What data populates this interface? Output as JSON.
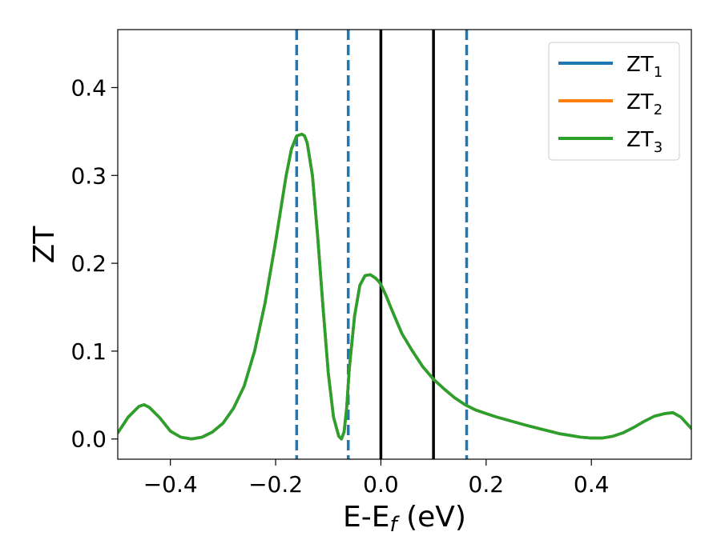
{
  "chart_data": {
    "type": "line",
    "title": "",
    "xlabel": "E-E",
    "xlabel_sub": "f",
    "xlabel_unit": " (eV)",
    "ylabel": "ZT",
    "xlim": [
      -0.5,
      0.59
    ],
    "ylim": [
      -0.023,
      0.466
    ],
    "xticks": [
      -0.4,
      -0.2,
      0.0,
      0.2,
      0.4
    ],
    "xtick_labels": [
      "−0.4",
      "−0.2",
      "0.0",
      "0.2",
      "0.4"
    ],
    "yticks": [
      0.0,
      0.1,
      0.2,
      0.3,
      0.4
    ],
    "ytick_labels": [
      "0.0",
      "0.1",
      "0.2",
      "0.3",
      "0.4"
    ],
    "grid": false,
    "legend_position": "top-right",
    "vlines": [
      {
        "x": -0.16,
        "style": "dashed",
        "color": "#1f77b4"
      },
      {
        "x": -0.062,
        "style": "dashed",
        "color": "#1f77b4"
      },
      {
        "x": 0.0,
        "style": "solid",
        "color": "#000000"
      },
      {
        "x": 0.1,
        "style": "solid",
        "color": "#000000"
      },
      {
        "x": 0.163,
        "style": "dashed",
        "color": "#1f77b4"
      }
    ],
    "x": [
      -0.5,
      -0.48,
      -0.46,
      -0.45,
      -0.44,
      -0.42,
      -0.4,
      -0.38,
      -0.36,
      -0.34,
      -0.32,
      -0.3,
      -0.28,
      -0.26,
      -0.24,
      -0.22,
      -0.2,
      -0.18,
      -0.17,
      -0.16,
      -0.15,
      -0.145,
      -0.14,
      -0.13,
      -0.12,
      -0.11,
      -0.1,
      -0.09,
      -0.08,
      -0.075,
      -0.07,
      -0.065,
      -0.06,
      -0.05,
      -0.04,
      -0.03,
      -0.02,
      -0.01,
      -0.005,
      0.0,
      0.01,
      0.02,
      0.04,
      0.06,
      0.08,
      0.1,
      0.12,
      0.14,
      0.16,
      0.18,
      0.2,
      0.22,
      0.25,
      0.28,
      0.3,
      0.32,
      0.34,
      0.36,
      0.38,
      0.4,
      0.42,
      0.44,
      0.46,
      0.48,
      0.5,
      0.52,
      0.54,
      0.555,
      0.57,
      0.59
    ],
    "series": [
      {
        "name": "ZT",
        "sub": "1",
        "color": "#1f77b4",
        "values": [
          0.007,
          0.025,
          0.037,
          0.039,
          0.036,
          0.024,
          0.009,
          0.002,
          0.0,
          0.002,
          0.008,
          0.018,
          0.035,
          0.06,
          0.1,
          0.155,
          0.225,
          0.3,
          0.33,
          0.345,
          0.347,
          0.345,
          0.337,
          0.3,
          0.23,
          0.15,
          0.075,
          0.025,
          0.003,
          0.0,
          0.008,
          0.035,
          0.08,
          0.14,
          0.175,
          0.186,
          0.187,
          0.183,
          0.18,
          0.176,
          0.163,
          0.148,
          0.12,
          0.1,
          0.082,
          0.068,
          0.057,
          0.047,
          0.039,
          0.033,
          0.029,
          0.025,
          0.02,
          0.015,
          0.012,
          0.009,
          0.006,
          0.004,
          0.002,
          0.001,
          0.001,
          0.003,
          0.007,
          0.013,
          0.02,
          0.026,
          0.029,
          0.03,
          0.025,
          0.012
        ]
      },
      {
        "name": "ZT",
        "sub": "2",
        "color": "#ff7f0e",
        "values": [
          0.007,
          0.025,
          0.037,
          0.039,
          0.036,
          0.024,
          0.009,
          0.002,
          0.0,
          0.002,
          0.008,
          0.018,
          0.035,
          0.06,
          0.1,
          0.155,
          0.225,
          0.3,
          0.33,
          0.345,
          0.347,
          0.345,
          0.337,
          0.3,
          0.23,
          0.15,
          0.075,
          0.025,
          0.003,
          0.0,
          0.008,
          0.035,
          0.08,
          0.14,
          0.175,
          0.186,
          0.187,
          0.183,
          0.18,
          0.176,
          0.163,
          0.148,
          0.12,
          0.1,
          0.082,
          0.068,
          0.057,
          0.047,
          0.039,
          0.033,
          0.029,
          0.025,
          0.02,
          0.015,
          0.012,
          0.009,
          0.006,
          0.004,
          0.002,
          0.001,
          0.001,
          0.003,
          0.007,
          0.013,
          0.02,
          0.026,
          0.029,
          0.03,
          0.025,
          0.012
        ]
      },
      {
        "name": "ZT",
        "sub": "3",
        "color": "#2ca02c",
        "values": [
          0.007,
          0.025,
          0.037,
          0.039,
          0.036,
          0.024,
          0.009,
          0.002,
          0.0,
          0.002,
          0.008,
          0.018,
          0.035,
          0.06,
          0.1,
          0.155,
          0.225,
          0.3,
          0.33,
          0.345,
          0.347,
          0.345,
          0.337,
          0.3,
          0.23,
          0.15,
          0.075,
          0.025,
          0.003,
          0.0,
          0.008,
          0.035,
          0.08,
          0.14,
          0.175,
          0.186,
          0.187,
          0.183,
          0.18,
          0.176,
          0.163,
          0.148,
          0.12,
          0.1,
          0.082,
          0.068,
          0.057,
          0.047,
          0.039,
          0.033,
          0.029,
          0.025,
          0.02,
          0.015,
          0.012,
          0.009,
          0.006,
          0.004,
          0.002,
          0.001,
          0.001,
          0.003,
          0.007,
          0.013,
          0.02,
          0.026,
          0.029,
          0.03,
          0.025,
          0.012
        ]
      }
    ]
  }
}
